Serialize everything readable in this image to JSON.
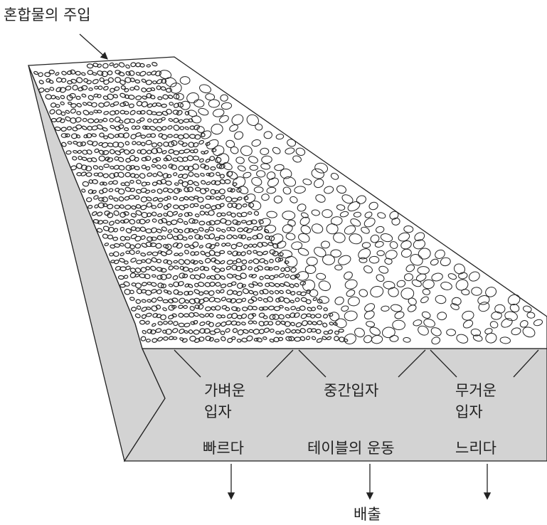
{
  "feed_label": "혼합물의 주입",
  "zones": [
    {
      "lines": [
        "가벼운",
        "입자"
      ]
    },
    {
      "lines": [
        "중간입자"
      ]
    },
    {
      "lines": [
        "무거운",
        "입자"
      ]
    }
  ],
  "motion": {
    "fast": "빠르다",
    "label": "테이블의 운동",
    "slow": "느리다"
  },
  "discharge": "배출"
}
